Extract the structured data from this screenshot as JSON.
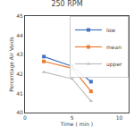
{
  "chart_data": {
    "type": "line",
    "title": "250 RPM",
    "x_label": "Time ( min )",
    "y_label": "Percentage Air Voids",
    "x": [
      2,
      5,
      7
    ],
    "series": [
      {
        "name": "low",
        "color": "#4472C4",
        "marker": "square",
        "line_style": "solid",
        "values": [
          42.9,
          42.4,
          41.6
        ]
      },
      {
        "name": "mean",
        "color": "#ED7D31",
        "marker": "square",
        "line_style": "solid",
        "values": [
          42.65,
          42.3,
          41.1
        ]
      },
      {
        "name": "upper",
        "color": "#BFBFBF",
        "marker": "triangle",
        "line_style": "solid",
        "values": [
          42.1,
          41.75,
          40.6
        ]
      }
    ],
    "xlim": [
      0,
      11
    ],
    "xticks": [
      0,
      5,
      10
    ],
    "ylim": [
      40,
      45
    ],
    "yticks": [
      40,
      41,
      42,
      43,
      44,
      45
    ],
    "grid": false,
    "legend": "upper right"
  }
}
